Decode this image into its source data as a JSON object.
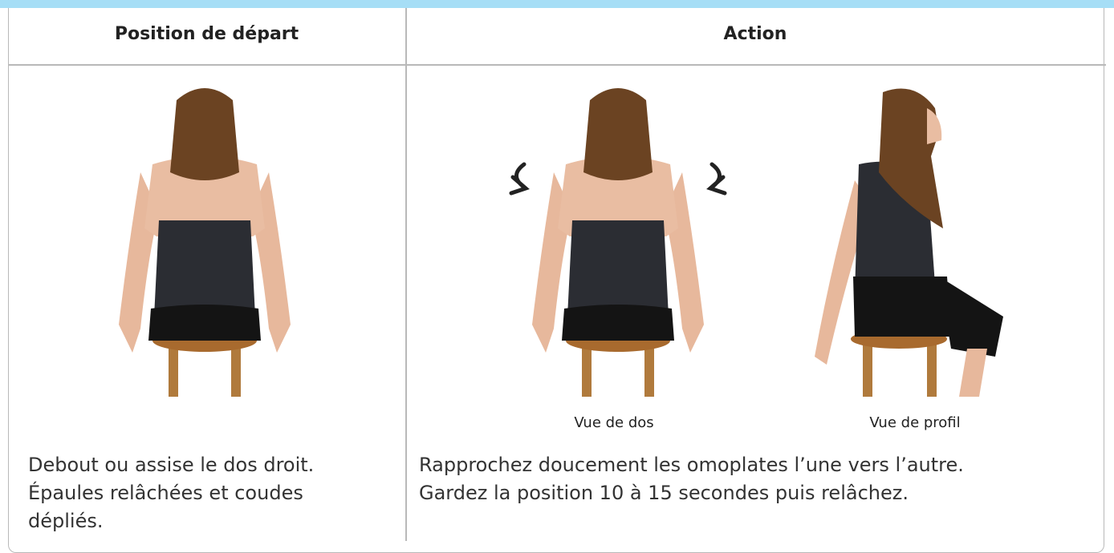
{
  "table": {
    "headers": [
      "Position de départ",
      "Action"
    ],
    "captions": [
      "Vue de dos",
      "Vue de profil"
    ],
    "start_text": [
      "Debout ou assise le dos droit.",
      "Épaules relâchées et coudes",
      "dépliés."
    ],
    "action_text": [
      "Rapprochez doucement les omoplates l’une vers l’autre.",
      "Gardez la position 10 à 15 secondes puis relâchez."
    ]
  }
}
